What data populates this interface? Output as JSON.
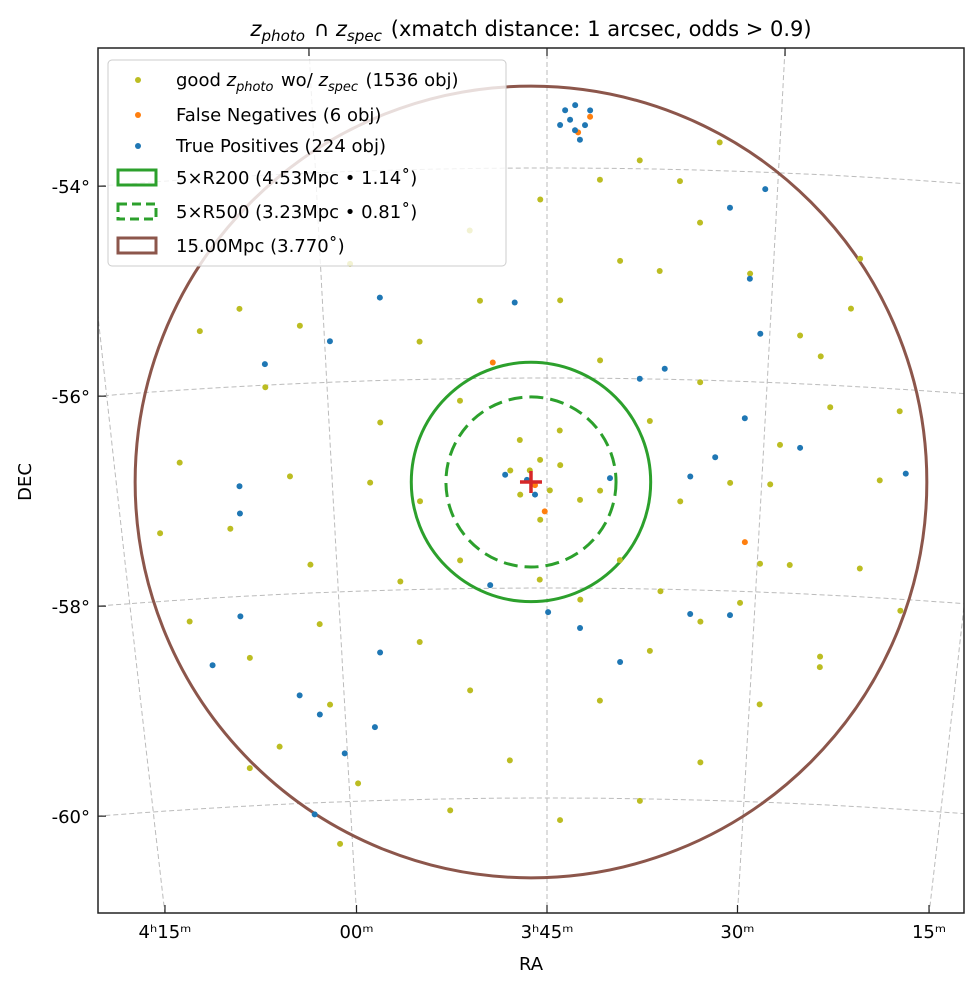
{
  "chart_data": {
    "type": "scatter",
    "projection": "sky (RA/DEC), gnomonic-like",
    "title": {
      "parts": [
        [
          "z",
          "photo"
        ],
        " ∩ ",
        [
          "z",
          "spec"
        ],
        " (xmatch distance: 1 arcsec, odds > 0.9)"
      ]
    },
    "xlabel": "RA",
    "ylabel": "DEC",
    "grid": true,
    "legend_position": "top-left",
    "x_ticks": [
      {
        "ra_deg": 63.75,
        "label": "4ʰ15ᵐ"
      },
      {
        "ra_deg": 60.0,
        "label": "00ᵐ"
      },
      {
        "ra_deg": 56.25,
        "label": "3ʰ45ᵐ"
      },
      {
        "ra_deg": 52.5,
        "label": "30ᵐ"
      },
      {
        "ra_deg": 48.75,
        "label": "15ᵐ"
      }
    ],
    "y_ticks": [
      {
        "dec_deg": -54,
        "label": "-54°"
      },
      {
        "dec_deg": -56,
        "label": "-56°"
      },
      {
        "dec_deg": -58,
        "label": "-58°"
      },
      {
        "dec_deg": -60,
        "label": "-60°"
      }
    ],
    "center": {
      "ra_deg": 56.53,
      "dec_deg": -56.99,
      "marker": "plus",
      "color": "#d62728"
    },
    "series": [
      {
        "name_parts": [
          "good ",
          [
            "z",
            "photo"
          ],
          " wo/ ",
          [
            "z",
            "spec"
          ],
          " (1536 obj)"
        ],
        "color": "#bcbd22",
        "count": 1536,
        "points": [
          [
            62.08,
            -55.45
          ],
          [
            61.39,
            -55.26
          ],
          [
            61.05,
            -56.02
          ],
          [
            62.62,
            -56.69
          ],
          [
            61.84,
            -57.35
          ],
          [
            60.73,
            -56.88
          ],
          [
            60.47,
            -57.73
          ],
          [
            62.71,
            -58.21
          ],
          [
            61.68,
            -58.59
          ],
          [
            60.27,
            -59.07
          ],
          [
            61.26,
            -59.45
          ],
          [
            59.83,
            -59.83
          ],
          [
            58.57,
            -58.5
          ],
          [
            57.67,
            -58.97
          ],
          [
            56.95,
            -59.64
          ],
          [
            55.27,
            -59.07
          ],
          [
            54.37,
            -58.59
          ],
          [
            53.47,
            -58.3
          ],
          [
            52.31,
            -59.07
          ],
          [
            51.26,
            -58.59
          ],
          [
            50.67,
            -57.73
          ],
          [
            50.45,
            -56.88
          ],
          [
            51.4,
            -56.21
          ],
          [
            51.99,
            -55.54
          ],
          [
            52.88,
            -54.97
          ],
          [
            53.74,
            -54.5
          ],
          [
            54.75,
            -53.92
          ],
          [
            55.04,
            -54.88
          ],
          [
            54.38,
            -54.97
          ],
          [
            56.03,
            -55.26
          ],
          [
            57.37,
            -55.26
          ],
          [
            58.4,
            -55.64
          ],
          [
            59.12,
            -56.4
          ],
          [
            57.74,
            -56.21
          ],
          [
            56.72,
            -56.59
          ],
          [
            56.37,
            -56.78
          ],
          [
            56.03,
            -56.5
          ],
          [
            55.32,
            -57.07
          ],
          [
            55.67,
            -57.16
          ],
          [
            56.89,
            -56.88
          ],
          [
            56.37,
            -57.35
          ],
          [
            54.95,
            -57.73
          ],
          [
            53.91,
            -57.16
          ],
          [
            53.05,
            -56.97
          ],
          [
            52.22,
            -56.59
          ],
          [
            51.62,
            -55.73
          ],
          [
            51.17,
            -55.26
          ],
          [
            56.36,
            -54.3
          ],
          [
            55.39,
            -54.11
          ],
          [
            57.52,
            -54.59
          ],
          [
            50.21,
            -56.21
          ],
          [
            52.45,
            -57.73
          ],
          [
            51.92,
            -57.73
          ],
          [
            51.25,
            -58.69
          ],
          [
            53.36,
            -59.64
          ],
          [
            54.48,
            -60.02
          ],
          [
            56.0,
            -60.21
          ],
          [
            58.1,
            -60.11
          ],
          [
            60.24,
            -60.4
          ],
          [
            61.85,
            -59.64
          ],
          [
            63.08,
            -57.35
          ],
          [
            60.4,
            -55.45
          ],
          [
            59.51,
            -54.88
          ],
          [
            53.47,
            -53.73
          ],
          [
            54.09,
            -54.11
          ],
          [
            51.08,
            -54.78
          ],
          [
            49.88,
            -58.11
          ],
          [
            55.35,
            -55.83
          ],
          [
            54.48,
            -56.4
          ],
          [
            53.64,
            -56.02
          ],
          [
            58.88,
            -57.92
          ],
          [
            57.8,
            -57.73
          ],
          [
            60.37,
            -58.3
          ],
          [
            56.38,
            -57.92
          ],
          [
            55.65,
            -58.11
          ],
          [
            54.21,
            -58.02
          ],
          [
            52.77,
            -58.11
          ],
          [
            52.35,
            -56.97
          ],
          [
            59.34,
            -56.97
          ],
          [
            58.48,
            -57.16
          ],
          [
            56.55,
            -56.88
          ],
          [
            56.2,
            -57.07
          ],
          [
            56.72,
            -57.11
          ],
          [
            56.02,
            -56.83
          ]
        ]
      },
      {
        "name_parts": [
          "False Negatives (6 obj)"
        ],
        "color": "#ff7f0e",
        "count": 6,
        "points": [
          [
            57.17,
            -55.85
          ],
          [
            52.74,
            -57.53
          ],
          [
            56.29,
            -57.27
          ],
          [
            55.56,
            -53.51
          ],
          [
            56.46,
            -57.02
          ],
          [
            55.75,
            -53.66
          ]
        ]
      },
      {
        "name_parts": [
          "True Positives (224 obj)"
        ],
        "color": "#1f77b4",
        "count": 224,
        "points": [
          [
            55.88,
            -53.54
          ],
          [
            55.8,
            -53.64
          ],
          [
            55.96,
            -53.45
          ],
          [
            55.64,
            -53.59
          ],
          [
            55.72,
            -53.73
          ],
          [
            56.04,
            -53.59
          ],
          [
            55.56,
            -53.45
          ],
          [
            55.8,
            -53.4
          ],
          [
            59.04,
            -55.21
          ],
          [
            59.91,
            -55.61
          ],
          [
            61.03,
            -55.8
          ],
          [
            61.65,
            -57.21
          ],
          [
            61.62,
            -56.95
          ],
          [
            59.3,
            -58.59
          ],
          [
            60.82,
            -58.97
          ],
          [
            60.47,
            -59.16
          ],
          [
            60.05,
            -59.54
          ],
          [
            59.46,
            -59.3
          ],
          [
            57.27,
            -57.97
          ],
          [
            56.23,
            -58.23
          ],
          [
            55.65,
            -58.38
          ],
          [
            54.91,
            -58.7
          ],
          [
            53.75,
            -56.92
          ],
          [
            53.33,
            -56.73
          ],
          [
            52.85,
            -56.35
          ],
          [
            51.87,
            -56.61
          ],
          [
            50.01,
            -56.8
          ],
          [
            52.94,
            -58.23
          ],
          [
            52.66,
            -55.54
          ],
          [
            53.66,
            -58.23
          ],
          [
            56.79,
            -55.28
          ],
          [
            56.6,
            -56.97
          ],
          [
            56.98,
            -56.92
          ],
          [
            56.46,
            -57.11
          ],
          [
            55.15,
            -56.95
          ],
          [
            54.67,
            -56.0
          ],
          [
            54.25,
            -55.9
          ],
          [
            53.26,
            -54.35
          ],
          [
            52.88,
            -55.02
          ],
          [
            52.7,
            -54.16
          ],
          [
            62.37,
            -58.64
          ],
          [
            61.79,
            -58.19
          ],
          [
            60.69,
            -60.11
          ]
        ]
      }
    ],
    "circles": [
      {
        "name_parts": [
          "5×R200 (4.53Mpc • 1.14$^\\circ$)"
        ],
        "label": "5×R200 (4.53Mpc • 1.14˚)",
        "radius_deg": 1.14,
        "color": "#2ca02c",
        "style": "solid"
      },
      {
        "label": "5×R500 (3.23Mpc • 0.81˚)",
        "radius_deg": 0.81,
        "color": "#2ca02c",
        "style": "dashed"
      },
      {
        "label": "15.00Mpc (3.770˚)",
        "radius_deg": 3.77,
        "color": "#8c564b",
        "style": "solid"
      }
    ]
  }
}
